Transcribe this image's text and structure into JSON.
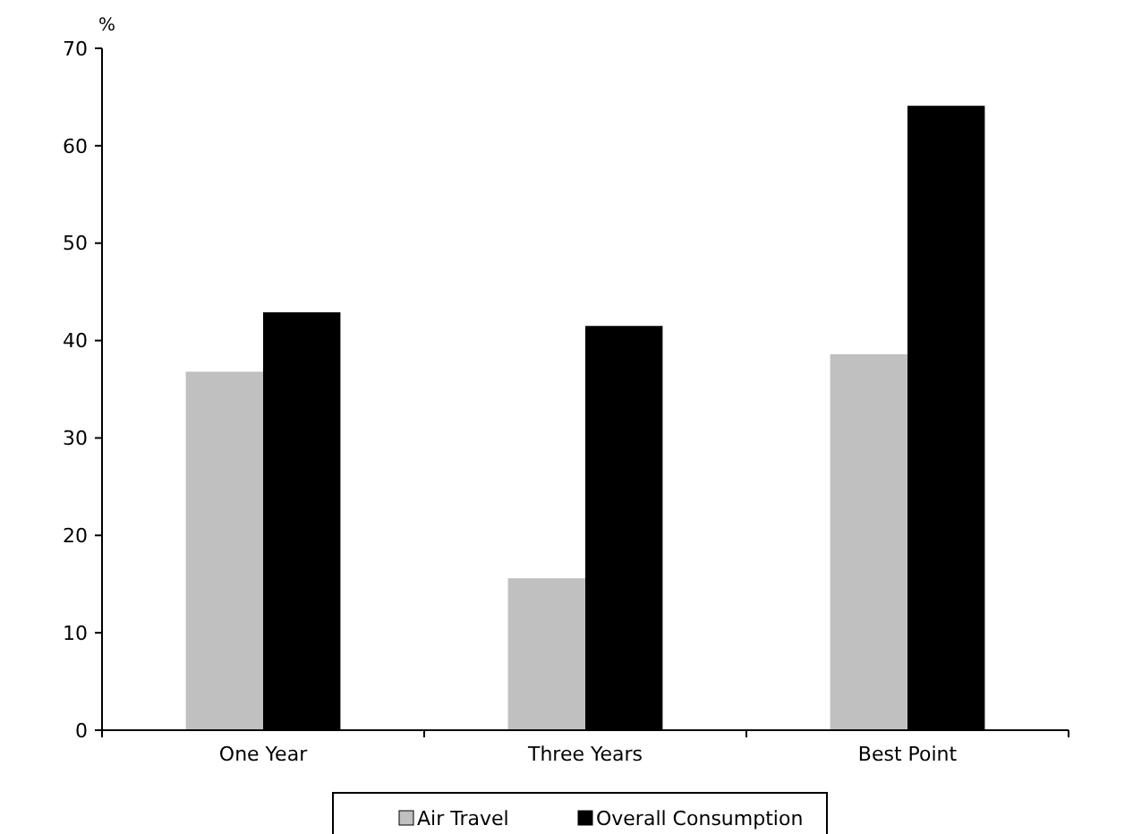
{
  "chart_data": {
    "type": "bar",
    "ylabel": "%",
    "categories": [
      "One Year",
      "Three Years",
      "Best Point"
    ],
    "series": [
      {
        "name": "Air Travel",
        "color": "#c0c0c0",
        "values": [
          36.8,
          15.6,
          38.6
        ]
      },
      {
        "name": "Overall Consumption",
        "color": "#000000",
        "values": [
          42.9,
          41.5,
          64.1
        ]
      }
    ],
    "ylim": [
      0,
      70
    ],
    "yticks": [
      0,
      10,
      20,
      30,
      40,
      50,
      60,
      70
    ],
    "grid": false,
    "legend": "bottom"
  }
}
